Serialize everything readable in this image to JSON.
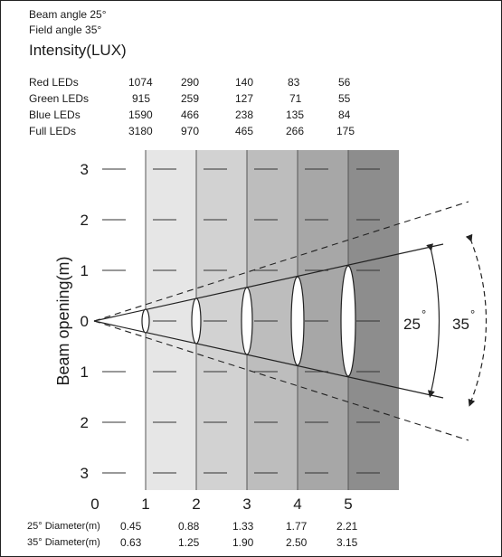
{
  "header": {
    "beam_angle": "Beam angle 25°",
    "field_angle": "Field angle 35°",
    "intensity_title": "Intensity(LUX)"
  },
  "intensity_table": {
    "rows": [
      {
        "label": "Red LEDs",
        "values": [
          "1074",
          "290",
          "140",
          "83",
          "56"
        ]
      },
      {
        "label": "Green LEDs",
        "values": [
          "915",
          "259",
          "127",
          "71",
          "55"
        ]
      },
      {
        "label": "Blue LEDs",
        "values": [
          "1590",
          "466",
          "238",
          "135",
          "84"
        ]
      },
      {
        "label": "Full LEDs",
        "values": [
          "3180",
          "970",
          "465",
          "266",
          "175"
        ]
      }
    ]
  },
  "diagram": {
    "ylabel": "Beam opening(m)",
    "y_ticks": [
      "3",
      "2",
      "1",
      "0",
      "1",
      "2",
      "3"
    ],
    "x_ticks": [
      "0",
      "1",
      "2",
      "3",
      "4",
      "5"
    ],
    "beam_label": "25",
    "field_label": "35",
    "degree_symbol": "°",
    "band_colors": [
      "#ffffff",
      "#e6e6e6",
      "#d2d2d2",
      "#bdbdbd",
      "#a7a7a7",
      "#8d8d8d"
    ]
  },
  "diameter_table": {
    "rows": [
      {
        "label": "25° Diameter(m)",
        "values": [
          "0.45",
          "0.88",
          "1.33",
          "1.77",
          "2.21"
        ]
      },
      {
        "label": "35° Diameter(m)",
        "values": [
          "0.63",
          "1.25",
          "1.90",
          "2.50",
          "3.15"
        ]
      }
    ]
  }
}
